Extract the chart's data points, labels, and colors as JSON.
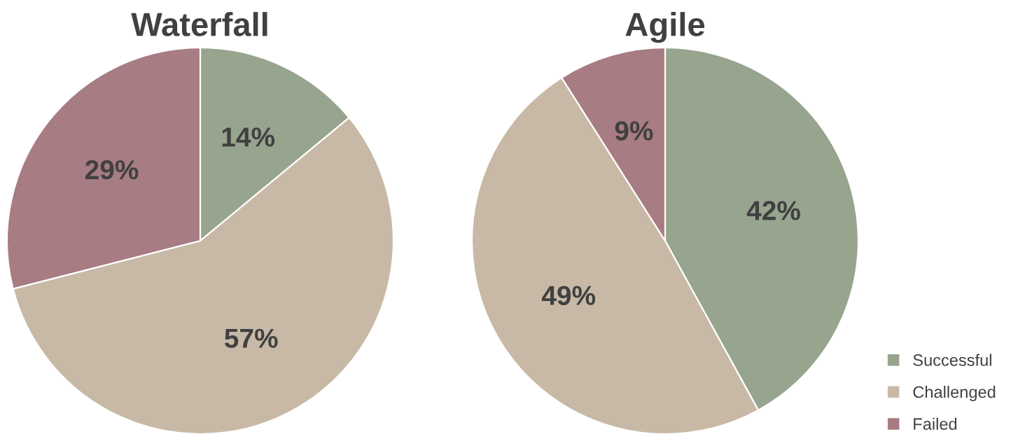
{
  "chart_data": [
    {
      "type": "pie",
      "title": "Waterfall",
      "categories": [
        "Successful",
        "Challenged",
        "Failed"
      ],
      "values": [
        14,
        57,
        29
      ],
      "value_labels": [
        "14%",
        "57%",
        "29%"
      ],
      "colors": [
        "#97a48e",
        "#c8b9a6",
        "#a77c82"
      ],
      "legend": "bottom right"
    },
    {
      "type": "pie",
      "title": "Agile",
      "categories": [
        null,
        null,
        null
      ],
      "values": [
        42,
        49,
        9
      ],
      "value_labels": [
        "42%",
        "49%",
        "9%"
      ],
      "colors": [
        "#97a48e",
        "#c8b9a6",
        "#a77c82"
      ]
    }
  ]
}
